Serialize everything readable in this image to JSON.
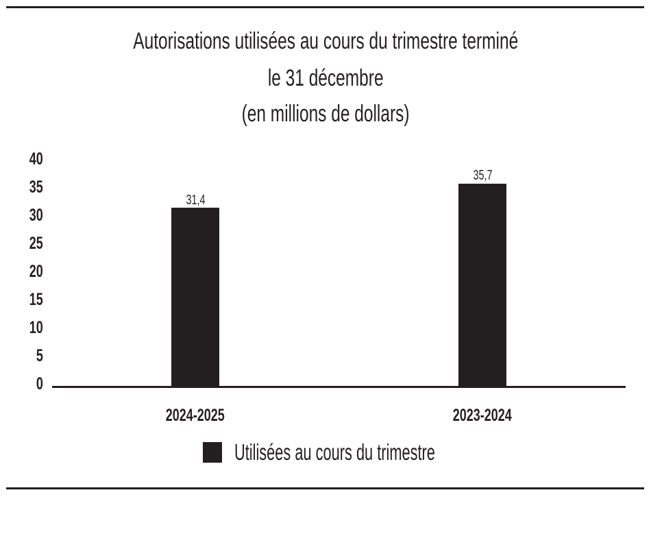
{
  "chart_data": {
    "type": "bar",
    "title": "Autorisations utilisées au cours du trimestre terminé le 31 décembre (en millions de dollars)",
    "title_lines": [
      "Autorisations utilisées au cours du trimestre terminé",
      "le 31 décembre",
      "(en millions de dollars)"
    ],
    "categories": [
      "2024-2025",
      "2023-2024"
    ],
    "series": [
      {
        "name": "Utilisées au cours du trimestre",
        "values": [
          31.4,
          35.7
        ],
        "color": "#231f20"
      }
    ],
    "data_labels": [
      "31,4",
      "35,7"
    ],
    "xlabel": "",
    "ylabel": "",
    "ylim": [
      0,
      40
    ],
    "yticks": [
      "40",
      "35",
      "30",
      "25",
      "20",
      "15",
      "10",
      "5",
      "0"
    ],
    "grid": false,
    "legend_position": "bottom"
  }
}
